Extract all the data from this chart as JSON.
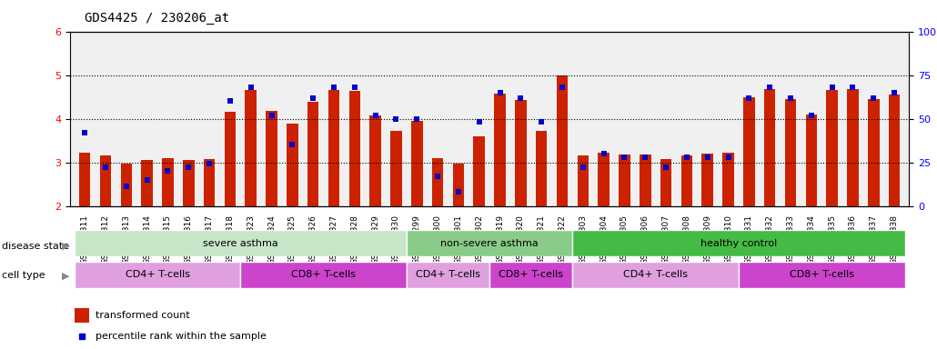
{
  "title": "GDS4425 / 230206_at",
  "samples": [
    "GSM788311",
    "GSM788312",
    "GSM788313",
    "GSM788314",
    "GSM788315",
    "GSM788316",
    "GSM788317",
    "GSM788318",
    "GSM788323",
    "GSM788324",
    "GSM788325",
    "GSM788326",
    "GSM788327",
    "GSM788328",
    "GSM788329",
    "GSM788330",
    "GSM788299",
    "GSM788300",
    "GSM788301",
    "GSM788302",
    "GSM788319",
    "GSM788320",
    "GSM788321",
    "GSM788322",
    "GSM788303",
    "GSM788304",
    "GSM788305",
    "GSM788306",
    "GSM788307",
    "GSM788308",
    "GSM788309",
    "GSM788310",
    "GSM788331",
    "GSM788332",
    "GSM788333",
    "GSM788334",
    "GSM788335",
    "GSM788336",
    "GSM788337",
    "GSM788338"
  ],
  "bar_values": [
    3.22,
    3.15,
    2.98,
    3.05,
    3.1,
    3.05,
    3.08,
    4.15,
    4.65,
    4.18,
    3.88,
    4.38,
    4.65,
    4.63,
    4.07,
    3.72,
    3.95,
    3.1,
    2.98,
    3.6,
    4.58,
    4.42,
    3.72,
    5.0,
    3.15,
    3.22,
    3.18,
    3.18,
    3.08,
    3.15,
    3.2,
    3.22,
    4.5,
    4.68,
    4.45,
    4.1,
    4.65,
    4.68,
    4.45,
    4.55
  ],
  "percentile_values": [
    42,
    22,
    11,
    15,
    20,
    22,
    24,
    60,
    68,
    52,
    35,
    62,
    68,
    68,
    52,
    50,
    50,
    17,
    8,
    48,
    65,
    62,
    48,
    68,
    22,
    30,
    28,
    28,
    22,
    28,
    28,
    28,
    62,
    68,
    62,
    52,
    68,
    68,
    62,
    65
  ],
  "ylim_left": [
    2,
    6
  ],
  "ylim_right": [
    0,
    100
  ],
  "yticks_left": [
    2,
    3,
    4,
    5,
    6
  ],
  "yticks_right": [
    0,
    25,
    50,
    75,
    100
  ],
  "bar_color": "#cc2200",
  "dot_color": "#0000cc",
  "bar_bottom": 2.0,
  "disease_groups": [
    {
      "label": "severe asthma",
      "start": 0,
      "end": 15,
      "color": "#c8e6c8"
    },
    {
      "label": "non-severe asthma",
      "start": 16,
      "end": 23,
      "color": "#88cc88"
    },
    {
      "label": "healthy control",
      "start": 24,
      "end": 39,
      "color": "#44bb44"
    }
  ],
  "cell_groups": [
    {
      "label": "CD4+ T-cells",
      "start": 0,
      "end": 7,
      "color": "#e0a0e0"
    },
    {
      "label": "CD8+ T-cells",
      "start": 8,
      "end": 15,
      "color": "#cc44cc"
    },
    {
      "label": "CD4+ T-cells",
      "start": 16,
      "end": 19,
      "color": "#e0a0e0"
    },
    {
      "label": "CD8+ T-cells",
      "start": 20,
      "end": 23,
      "color": "#cc44cc"
    },
    {
      "label": "CD4+ T-cells",
      "start": 24,
      "end": 31,
      "color": "#e0a0e0"
    },
    {
      "label": "CD8+ T-cells",
      "start": 32,
      "end": 39,
      "color": "#cc44cc"
    }
  ],
  "legend_bar_label": "transformed count",
  "legend_dot_label": "percentile rank within the sample",
  "background_color": "#ffffff",
  "tick_label_fontsize": 6.5,
  "title_fontsize": 10,
  "bar_width": 0.55,
  "right_tick_labels": [
    "0",
    "25",
    "50",
    "75",
    "100°"
  ]
}
